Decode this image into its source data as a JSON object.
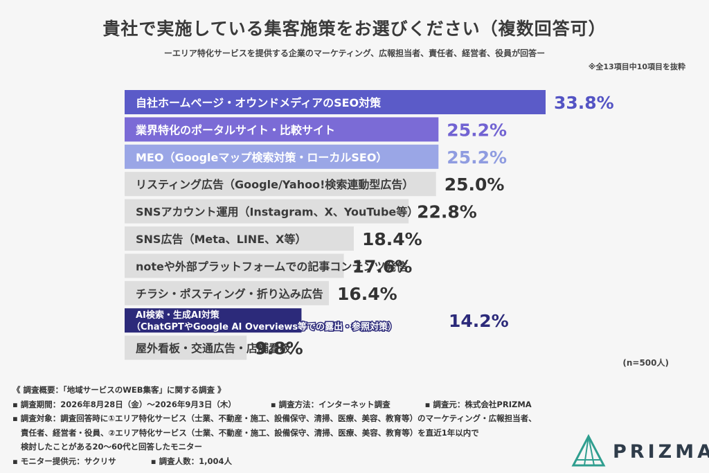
{
  "title": "貴社で実施している集客施策をお選びください（複数回答可）",
  "subtitle": "ーエリア特化サービスを提供する企業のマーケティング、広報担当者、責任者、経営者、役員が回答ー",
  "note_top": "※全13項目中10項目を抜粋",
  "n_note": "(n=500人)",
  "colors": {
    "top1": "#5b5bc8",
    "top2": "#7b6bd6",
    "top3": "#9aa6e6",
    "gray": "#dedede",
    "ai": "#2c2a7a",
    "value_dark": "#333333",
    "value_top1": "#5454c4",
    "value_top2": "#7163d2",
    "value_top3": "#8f9ce0",
    "value_ai": "#2c2a7a"
  },
  "chart_data": {
    "type": "bar",
    "orientation": "horizontal",
    "title": "貴社で実施している集客施策をお選びください（複数回答可）",
    "unit": "%",
    "categories": [
      "自社ホームページ・オウンドメディアのSEO対策",
      "業界特化のポータルサイト・比較サイト",
      "MEO（Googleマップ検索対策・ローカルSEO）",
      "リスティング広告（Google/Yahoo!検索連動型広告）",
      "SNSアカウント運用（Instagram、X、YouTube等）",
      "SNS広告（Meta、LINE、X等）",
      "noteや外部プラットフォームでの記事コンテンツ発信",
      "チラシ・ポスティング・折り込み広告",
      "AI検索・生成AI対策",
      "屋外看板・交通広告・店舗看板"
    ],
    "category_sublabels": [
      "",
      "",
      "",
      "",
      "",
      "",
      "",
      "",
      "（ChatGPTやGoogle AI Overviews等での露出・参照対策）",
      ""
    ],
    "values": [
      33.8,
      25.2,
      25.2,
      25.0,
      22.8,
      18.4,
      17.6,
      16.4,
      14.2,
      9.8
    ],
    "value_labels": [
      "33.8%",
      "25.2%",
      "25.2%",
      "25.0%",
      "22.8%",
      "18.4%",
      "17.6%",
      "16.4%",
      "14.2%",
      "9.8%"
    ],
    "bar_styles": [
      "top1",
      "top2",
      "top3",
      "gray",
      "gray",
      "gray",
      "gray",
      "gray",
      "ai",
      "gray"
    ],
    "xlim": [
      0,
      33.8
    ]
  },
  "footer": {
    "heading": "《 調査概要：「地域サービスのWEB集客」に関する調査 》",
    "period": "▪ 調査期間：2026年8月28日（金）〜2026年9月3日（木）",
    "method": "▪ 調査方法：インターネット調査",
    "source": "▪ 調査元：株式会社PRIZMA",
    "target_1": "▪ 調査対象：調査回答時に①エリア特化サービス（士業、不動産・施工、設備保守、清掃、医療、美容、教育等）のマーケティング・広報担当者、",
    "target_2": "責任者、経営者・役員、②エリア特化サービス（士業、不動産・施工、設備保守、清掃、医療、美容、教育等）を直近1年以内で",
    "target_3": "検討したことがある20〜60代と回答したモニター",
    "provider": "▪ モニター提供元：サクリサ",
    "count": "▪ 調査人数：1,004人"
  },
  "logo": {
    "text": "PRIZMA"
  }
}
